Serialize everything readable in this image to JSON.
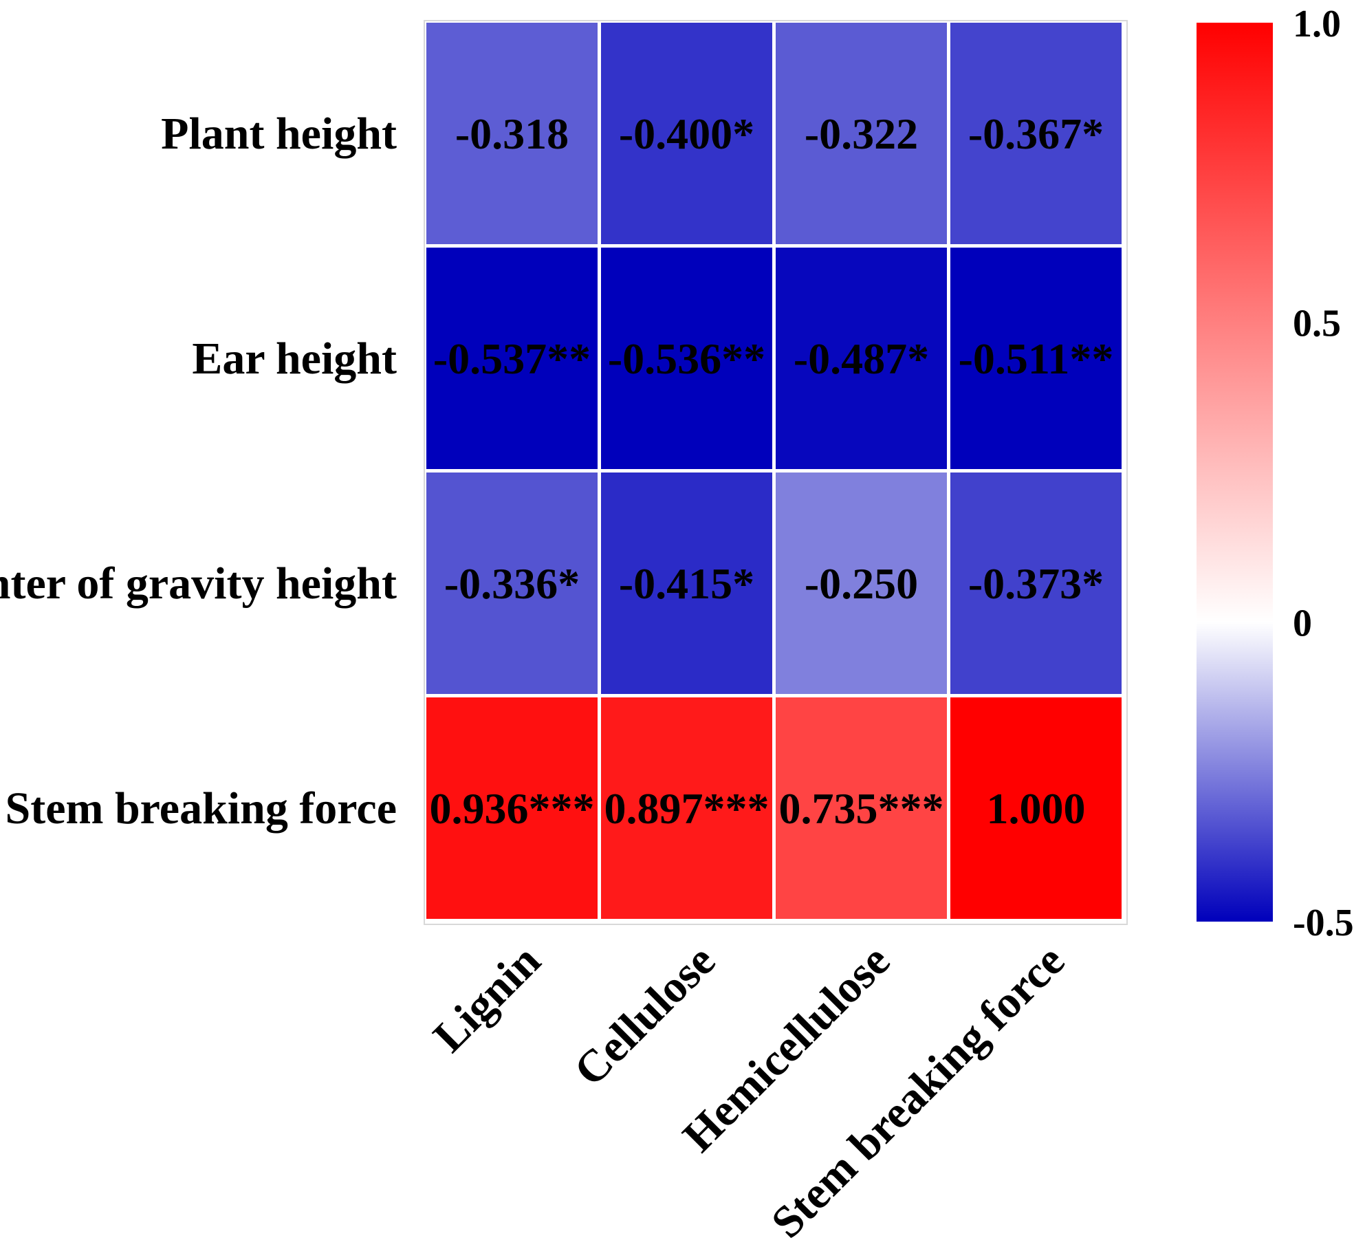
{
  "chart_data": {
    "type": "heatmap",
    "rows": [
      "Plant height",
      "Ear height",
      "Center of gravity height",
      "Stem breaking force"
    ],
    "columns": [
      "Lignin",
      "Cellulose",
      "Hemicellulose",
      "Stem breaking force"
    ],
    "values": [
      [
        -0.318,
        -0.4,
        -0.322,
        -0.367
      ],
      [
        -0.537,
        -0.536,
        -0.487,
        -0.511
      ],
      [
        -0.336,
        -0.415,
        -0.25,
        -0.373
      ],
      [
        0.936,
        0.897,
        0.735,
        1.0
      ]
    ],
    "labels": [
      [
        "-0.318",
        "-0.400*",
        "-0.322",
        "-0.367*"
      ],
      [
        "-0.537**",
        "-0.536**",
        "-0.487*",
        "-0.511**"
      ],
      [
        "-0.336*",
        "-0.415*",
        "-0.250",
        "-0.373*"
      ],
      [
        "0.936***",
        "0.897***",
        "0.735***",
        "1.000"
      ]
    ],
    "colorbar": {
      "range": [
        -0.5,
        1.0
      ],
      "ticks": [
        1.0,
        0.5,
        0,
        -0.5
      ],
      "tick_labels": [
        "1.0",
        "0.5",
        "0",
        "-0.5"
      ],
      "low_color": "#0000bb",
      "mid_color": "#ffffff",
      "high_color": "#ff0000"
    }
  }
}
